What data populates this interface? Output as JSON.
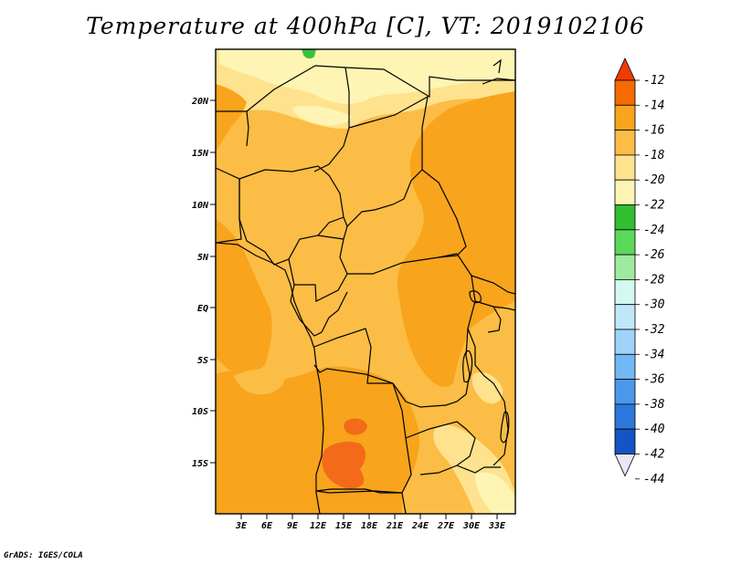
{
  "title": "Temperature at 400hPa [C], VT: 2019102106",
  "credit": "GrADS: IGES/COLA",
  "map": {
    "region": "Central Africa",
    "lat_labels": [
      "20N",
      "15N",
      "10N",
      "5N",
      "EQ",
      "5S",
      "10S",
      "15S"
    ],
    "lon_labels": [
      "3E",
      "6E",
      "9E",
      "12E",
      "15E",
      "18E",
      "21E",
      "24E",
      "27E",
      "30E",
      "33E"
    ],
    "colors": {
      "c_22_20": "#fef5b4",
      "c_20_18": "#fee28e",
      "c_18_16": "#fbbd45",
      "c_16_14": "#f8a41c",
      "c_14_12": "#f36a1b",
      "green": "#3ac23a"
    }
  },
  "colorbar": {
    "labels": [
      "-12",
      "-14",
      "-16",
      "-18",
      "-20",
      "-22",
      "-24",
      "-26",
      "-28",
      "-30",
      "-32",
      "-34",
      "-36",
      "-38",
      "-40",
      "-42",
      "-44"
    ],
    "colors": [
      "#f03c00",
      "#f56b00",
      "#f8a41c",
      "#fbbd45",
      "#fee28e",
      "#fef5b4",
      "#2fbf2f",
      "#5bd85b",
      "#9eeb9e",
      "#d2f8f0",
      "#bfe7fa",
      "#9fd3f8",
      "#72b8f4",
      "#4b98ea",
      "#2c77db",
      "#1554c4",
      "#08178c"
    ]
  }
}
